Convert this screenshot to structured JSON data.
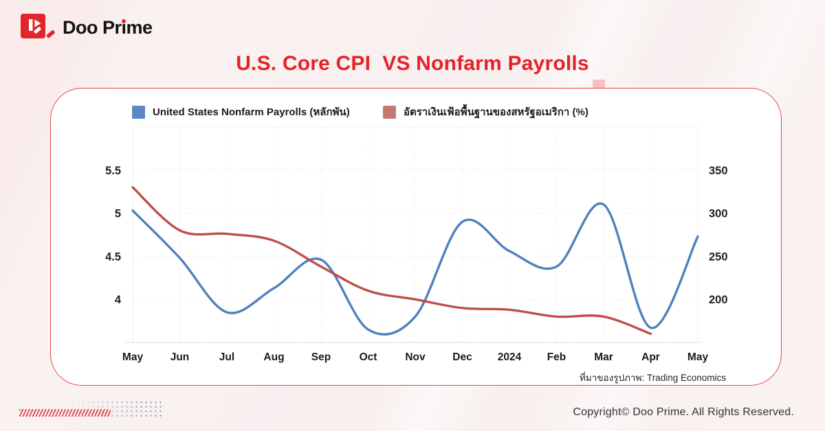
{
  "brand": {
    "name_pre": "Doo Pr",
    "name_i": "i",
    "name_post": "me"
  },
  "title": "U.S. Core CPI  VS Nonfarm Payrolls",
  "accent_color": "#e62129",
  "card_border_color": "#e6434a",
  "legend": [
    {
      "label": "United States Nonfarm Payrolls (หลักพัน)",
      "color": "#5b87c3"
    },
    {
      "label": "อัตราเงินเฟ้อพื้นฐานของสหรัฐอเมริกา (%)",
      "color": "#c47a74"
    }
  ],
  "source_note": "ที่มาของรูปภาพ: Trading Economics",
  "copyright": "Copyright© Doo Prime. All Rights Reserved.",
  "chart_data": {
    "type": "line",
    "title": "U.S. Core CPI  VS Nonfarm Payrolls",
    "categories": [
      "May",
      "Jun",
      "Jul",
      "Aug",
      "Sep",
      "Oct",
      "Nov",
      "Dec",
      "2024",
      "Feb",
      "Mar",
      "Apr",
      "May"
    ],
    "series": [
      {
        "name": "United States Nonfarm Payrolls (หลักพัน)",
        "axis": "right",
        "color": "#4f81bd",
        "values": [
          303,
          248,
          185,
          213,
          246,
          165,
          180,
          290,
          256,
          238,
          310,
          167,
          273
        ]
      },
      {
        "name": "อัตราเงินเฟ้อพื้นฐานของสหรัฐอเมริกา (%)",
        "axis": "left",
        "color": "#bf4e4b",
        "values": [
          5.3,
          4.8,
          4.76,
          4.68,
          4.38,
          4.1,
          4.0,
          3.9,
          3.88,
          3.8,
          3.8,
          3.6,
          null
        ]
      }
    ],
    "left_axis": {
      "ticks": [
        5.5,
        5,
        4.5,
        4
      ],
      "range": [
        3.5,
        6.0
      ]
    },
    "right_axis": {
      "ticks": [
        350,
        300,
        250,
        200
      ],
      "range": [
        150,
        400
      ]
    },
    "grid": true,
    "legend_position": "top"
  }
}
